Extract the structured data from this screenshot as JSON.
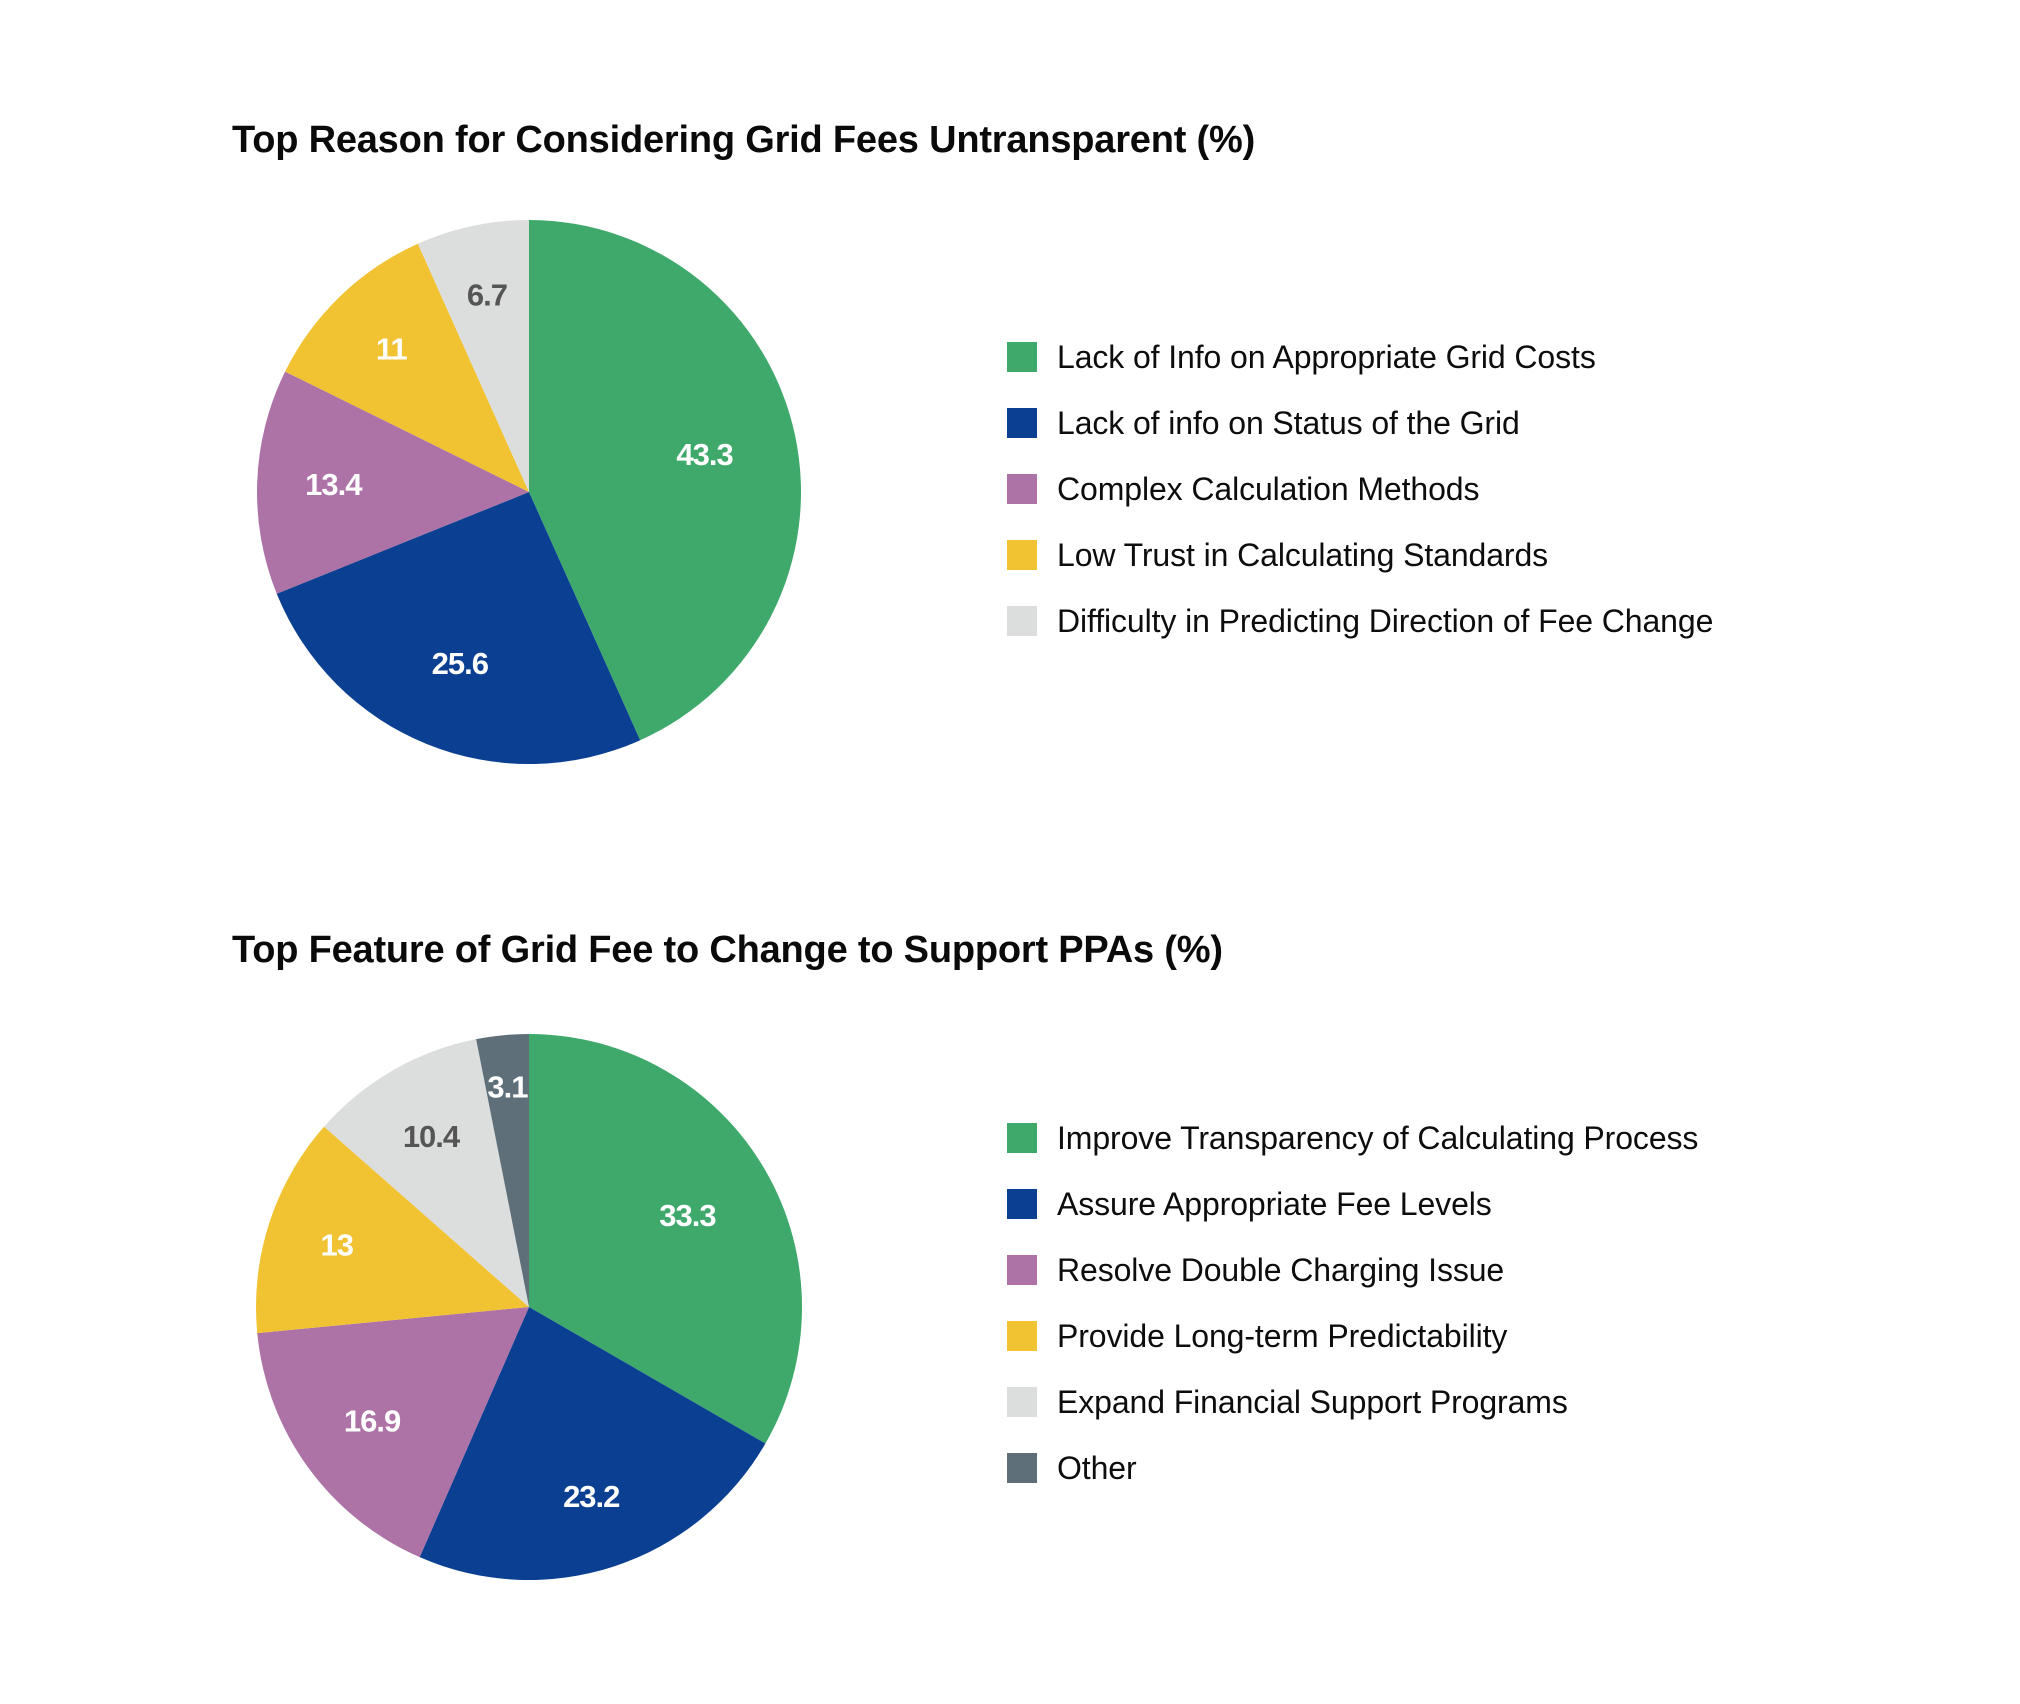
{
  "chart_data": [
    {
      "type": "pie",
      "title": "Top Reason for Considering Grid Fees Untransparent (%)",
      "categories": [
        "Lack of Info on Appropriate Grid Costs",
        "Lack of info on Status of the Grid",
        "Complex Calculation Methods",
        "Low Trust in Calculating Standards",
        "Difficulty in Predicting Direction of Fee Change"
      ],
      "values": [
        43.3,
        25.6,
        13.4,
        11,
        6.7
      ],
      "data_labels": [
        "43.3",
        "25.6",
        "13.4",
        "11",
        "6.7"
      ],
      "colors": [
        "#3ea96b",
        "#0a3f92",
        "#ad72a6",
        "#f1c232",
        "#dcdedd"
      ],
      "label_colors": [
        "#ffffff",
        "#ffffff",
        "#ffffff",
        "#ffffff",
        "#555555"
      ],
      "start": "top",
      "direction": "clockwise",
      "legend": "right"
    },
    {
      "type": "pie",
      "title": "Top Feature of Grid Fee to Change to Support PPAs (%)",
      "categories": [
        "Improve Transparency of Calculating Process",
        "Assure Appropriate Fee Levels",
        "Resolve Double Charging Issue",
        "Provide Long-term Predictability",
        "Expand Financial Support Programs",
        "Other"
      ],
      "values": [
        33.3,
        23.2,
        16.9,
        13,
        10.4,
        3.1
      ],
      "data_labels": [
        "33.3",
        "23.2",
        "16.9",
        "13",
        "10.4",
        "3.1"
      ],
      "colors": [
        "#3ea96b",
        "#0a3f92",
        "#ad72a6",
        "#f1c232",
        "#dcdedd",
        "#5f6f7a"
      ],
      "label_colors": [
        "#ffffff",
        "#ffffff",
        "#ffffff",
        "#ffffff",
        "#555555",
        "#ffffff"
      ],
      "start": "top",
      "direction": "clockwise",
      "legend": "right"
    }
  ]
}
